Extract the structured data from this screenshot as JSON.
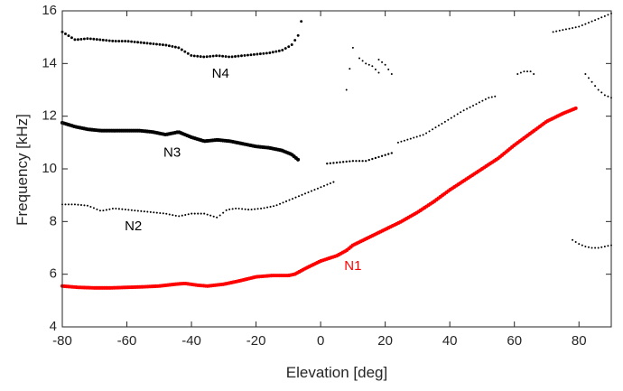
{
  "colors": {
    "highlight": "#ff0000",
    "track": "#000000",
    "axis": "#262626",
    "background": "#ffffff"
  },
  "chart_data": {
    "type": "scatter",
    "title": "",
    "xlabel": "Elevation [deg]",
    "ylabel": "Frequency [kHz]",
    "xlim": [
      -80,
      90
    ],
    "ylim": [
      4,
      16
    ],
    "xticks": [
      -80,
      -60,
      -40,
      -20,
      0,
      20,
      40,
      60,
      80
    ],
    "yticks": [
      4,
      6,
      8,
      10,
      12,
      14,
      16
    ],
    "grid": false,
    "legend": "none",
    "series": [
      {
        "name": "N1",
        "color": "#ff0000",
        "label_pos": [
          10,
          6.3
        ],
        "marker_size_kHz": 0.14,
        "x": [
          -80,
          -75,
          -70,
          -65,
          -60,
          -55,
          -50,
          -45,
          -42,
          -38,
          -35,
          -30,
          -25,
          -20,
          -15,
          -10,
          -8,
          -5,
          0,
          5,
          8,
          10,
          15,
          20,
          25,
          30,
          35,
          40,
          45,
          50,
          55,
          60,
          65,
          70,
          75,
          79
        ],
        "y": [
          5.55,
          5.5,
          5.48,
          5.48,
          5.5,
          5.52,
          5.55,
          5.62,
          5.65,
          5.58,
          5.55,
          5.62,
          5.75,
          5.9,
          5.95,
          5.95,
          6.0,
          6.2,
          6.5,
          6.7,
          6.9,
          7.1,
          7.4,
          7.7,
          8.0,
          8.35,
          8.75,
          9.2,
          9.6,
          10.0,
          10.4,
          10.9,
          11.35,
          11.8,
          12.1,
          12.3
        ]
      },
      {
        "name": "N2",
        "color": "#000000",
        "label_pos": [
          -58,
          7.8
        ],
        "marker_size_kHz": 0.07,
        "x": [
          -80,
          -76,
          -72,
          -68,
          -64,
          -60,
          -56,
          -52,
          -48,
          -44,
          -40,
          -36,
          -32,
          -29,
          -26,
          -22,
          -18,
          -14,
          -10,
          -6,
          -2,
          2,
          4
        ],
        "y": [
          8.65,
          8.65,
          8.6,
          8.4,
          8.5,
          8.45,
          8.4,
          8.35,
          8.3,
          8.2,
          8.3,
          8.3,
          8.15,
          8.45,
          8.5,
          8.45,
          8.5,
          8.6,
          8.8,
          9.0,
          9.2,
          9.4,
          9.5
        ]
      },
      {
        "name": "N3",
        "color": "#000000",
        "label_pos": [
          -46,
          10.6
        ],
        "marker_size_kHz": 0.14,
        "x": [
          -80,
          -76,
          -72,
          -68,
          -64,
          -60,
          -56,
          -52,
          -48,
          -44,
          -40,
          -36,
          -32,
          -28,
          -24,
          -20,
          -16,
          -12,
          -9,
          -7
        ],
        "y": [
          11.75,
          11.6,
          11.5,
          11.45,
          11.45,
          11.45,
          11.45,
          11.4,
          11.3,
          11.4,
          11.2,
          11.05,
          11.1,
          11.05,
          10.95,
          10.85,
          10.8,
          10.7,
          10.55,
          10.35
        ]
      },
      {
        "name": "N4",
        "color": "#000000",
        "label_pos": [
          -31,
          13.6
        ],
        "marker_size_kHz": 0.1,
        "x": [
          -80,
          -76,
          -72,
          -68,
          -64,
          -60,
          -56,
          -52,
          -48,
          -44,
          -40,
          -36,
          -32,
          -28,
          -24,
          -20,
          -16,
          -12,
          -9,
          -7,
          -6
        ],
        "y": [
          15.2,
          14.9,
          14.95,
          14.9,
          14.85,
          14.85,
          14.8,
          14.75,
          14.7,
          14.6,
          14.3,
          14.25,
          14.3,
          14.25,
          14.3,
          14.35,
          14.4,
          14.5,
          14.7,
          15.05,
          15.6
        ]
      }
    ],
    "extra_tracks": [
      {
        "color": "#000000",
        "marker_size_kHz": 0.08,
        "x": [
          2,
          6,
          10,
          14,
          18,
          22
        ],
        "y": [
          10.2,
          10.25,
          10.3,
          10.3,
          10.45,
          10.6
        ]
      },
      {
        "color": "#000000",
        "marker_size_kHz": 0.035,
        "x": [
          24,
          28,
          32,
          36,
          40,
          44,
          48,
          52,
          54
        ],
        "y": [
          11.0,
          11.15,
          11.3,
          11.6,
          11.9,
          12.2,
          12.45,
          12.7,
          12.75
        ]
      },
      {
        "color": "#000000",
        "marker_size_kHz": 0.035,
        "x": [
          12,
          14,
          16,
          18
        ],
        "y": [
          14.2,
          14.0,
          13.9,
          13.65
        ]
      },
      {
        "color": "#000000",
        "marker_size_kHz": 0.035,
        "x": [
          18,
          20,
          22
        ],
        "y": [
          14.15,
          13.95,
          13.6
        ]
      },
      {
        "color": "#000000",
        "marker_size_kHz": 0.05,
        "x": [
          61,
          63,
          65,
          66
        ],
        "y": [
          13.6,
          13.7,
          13.7,
          13.6
        ]
      },
      {
        "color": "#000000",
        "marker_size_kHz": 0.06,
        "x": [
          72,
          76,
          80,
          84,
          90
        ],
        "y": [
          15.2,
          15.3,
          15.4,
          15.6,
          15.9
        ]
      },
      {
        "color": "#000000",
        "marker_size_kHz": 0.04,
        "x": [
          82,
          84,
          86,
          88,
          90
        ],
        "y": [
          13.6,
          13.3,
          13.0,
          12.8,
          12.7
        ]
      },
      {
        "color": "#000000",
        "marker_size_kHz": 0.04,
        "x": [
          78,
          80,
          82,
          84,
          86,
          88,
          90
        ],
        "y": [
          7.3,
          7.15,
          7.05,
          7.0,
          7.0,
          7.05,
          7.1
        ]
      },
      {
        "color": "#000000",
        "marker_size_kHz": 0.03,
        "x": [
          8,
          10
        ],
        "y": [
          13.0,
          14.6
        ]
      }
    ]
  }
}
